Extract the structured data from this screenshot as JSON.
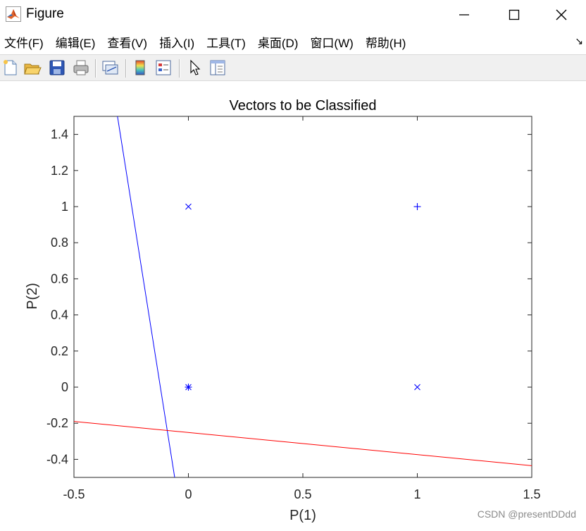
{
  "window": {
    "title": "Figure",
    "controls": {
      "minimize": "minimize-icon",
      "maximize": "maximize-icon",
      "close": "close-icon"
    }
  },
  "menu": [
    {
      "label": "文件(F)"
    },
    {
      "label": "编辑(E)"
    },
    {
      "label": "查看(V)"
    },
    {
      "label": "插入(I)"
    },
    {
      "label": "工具(T)"
    },
    {
      "label": "桌面(D)"
    },
    {
      "label": "窗口(W)"
    },
    {
      "label": "帮助(H)"
    }
  ],
  "toolbar": [
    {
      "icon": "new-figure-icon"
    },
    {
      "icon": "open-file-icon"
    },
    {
      "icon": "save-icon"
    },
    {
      "icon": "print-icon"
    },
    {
      "icon": "link-plot-icon"
    },
    {
      "icon": "colorbar-icon"
    },
    {
      "icon": "legend-icon"
    },
    {
      "icon": "pointer-icon"
    },
    {
      "icon": "property-editor-icon"
    }
  ],
  "watermark": "CSDN @presentDDdd",
  "chart_data": {
    "type": "scatter",
    "title": "Vectors to be Classified",
    "xlabel": "P(1)",
    "ylabel": "P(2)",
    "xlim": [
      -0.5,
      1.5
    ],
    "ylim": [
      -0.5,
      1.5
    ],
    "xticks": [
      -0.5,
      0,
      0.5,
      1,
      1.5
    ],
    "yticks": [
      -0.4,
      -0.2,
      0,
      0.2,
      0.4,
      0.6,
      0.8,
      1,
      1.2,
      1.4
    ],
    "xtick_labels": [
      "-0.5",
      "0",
      "0.5",
      "1",
      "1.5"
    ],
    "ytick_labels": [
      "-0.4",
      "-0.2",
      "0",
      "0.2",
      "0.4",
      "0.6",
      "0.8",
      "1",
      "1.2",
      "1.4"
    ],
    "grid": false,
    "points": [
      {
        "x": 0,
        "y": 0,
        "marker": "*",
        "color": "#0000ff"
      },
      {
        "x": 0,
        "y": 1,
        "marker": "x",
        "color": "#0000ff"
      },
      {
        "x": 1,
        "y": 0,
        "marker": "x",
        "color": "#0000ff"
      },
      {
        "x": 1,
        "y": 1,
        "marker": "+",
        "color": "#0000ff"
      }
    ],
    "lines": [
      {
        "color": "#0000ff",
        "points": [
          [
            -0.31,
            1.5
          ],
          [
            -0.06,
            -0.5
          ]
        ]
      },
      {
        "color": "#ff0000",
        "points": [
          [
            -0.5,
            -0.19
          ],
          [
            1.5,
            -0.435
          ]
        ]
      }
    ]
  }
}
